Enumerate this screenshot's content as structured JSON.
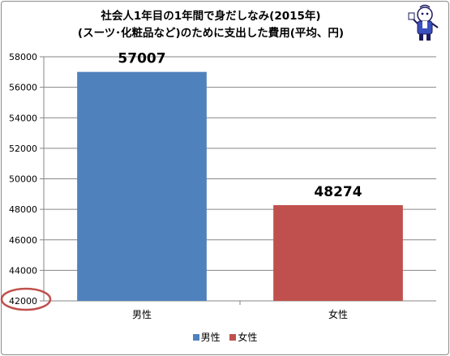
{
  "title_line1": "社会人1年目の1年間で身だしなみ(2015年)",
  "title_line2": "(スーツ･化粧品など)のために支出した費用(平均、円)",
  "colors": {
    "male": "#4f81bd",
    "female": "#c0504d",
    "grid": "#868686",
    "highlight": "#c0504d"
  },
  "chart_data": {
    "type": "bar",
    "categories": [
      "男性",
      "女性"
    ],
    "values": [
      57007,
      48274
    ],
    "data_labels": [
      "57007",
      "48274"
    ],
    "ylim": [
      42000,
      58000
    ],
    "yticks": [
      "42000",
      "44000",
      "46000",
      "48000",
      "50000",
      "52000",
      "54000",
      "56000",
      "58000"
    ],
    "grid": true,
    "legend": {
      "position": "bottom",
      "entries": [
        "男性",
        "女性"
      ]
    },
    "annotation": "origin 42000 circled in red",
    "xlabel": "",
    "ylabel": ""
  },
  "mascot": {
    "icon": "mascot-icon"
  }
}
